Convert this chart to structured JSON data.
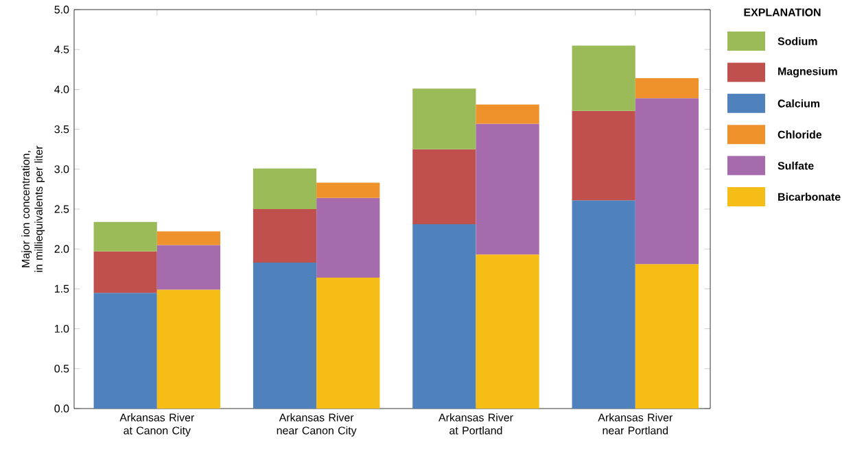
{
  "chart_data": {
    "type": "bar",
    "categories": [
      "Arkansas River at Canon City",
      "Arkansas River near Canon City",
      "Arkansas River at Portland",
      "Arkansas River near Portland"
    ],
    "ylabel": "Major ion concentration, in milliequivalents per liter",
    "legend_title": "EXPLANATION",
    "legend": "right",
    "ylim": [
      0,
      5
    ],
    "yticks": [
      {
        "value": 0,
        "label": "0.0"
      },
      {
        "value": 0.5,
        "label": "0.5"
      },
      {
        "value": 1,
        "label": "1.0"
      },
      {
        "value": 1.5,
        "label": "1.5"
      },
      {
        "value": 2,
        "label": "2.0"
      },
      {
        "value": 2.5,
        "label": "2.5"
      },
      {
        "value": 3,
        "label": "3.0"
      },
      {
        "value": 3.5,
        "label": "3.5"
      },
      {
        "value": 4,
        "label": "4.0"
      },
      {
        "value": 4.5,
        "label": "4.5"
      },
      {
        "value": 5,
        "label": "5.0"
      }
    ],
    "series": [
      {
        "name": "Calcium",
        "color": "#4f81bd",
        "base": [
          0,
          0,
          0,
          0
        ],
        "values": [
          1.45,
          1.83,
          2.31,
          2.61
        ]
      },
      {
        "name": "Magnesium",
        "color": "#c0504d",
        "base": [
          1.45,
          1.83,
          2.31,
          2.61
        ],
        "values": [
          0.52,
          0.67,
          0.94,
          1.12
        ]
      },
      {
        "name": "Sodium",
        "color": "#9bbb59",
        "base": [
          1.97,
          2.5,
          3.25,
          3.73
        ],
        "values": [
          0.37,
          0.51,
          0.76,
          0.82
        ]
      },
      {
        "name": "Bicarbonate",
        "color": "#f6bd16",
        "base": [
          0,
          0,
          0,
          0
        ],
        "values": [
          1.49,
          1.64,
          1.93,
          1.81
        ]
      },
      {
        "name": "Sulfate",
        "color": "#a66bad",
        "base": [
          1.49,
          1.64,
          1.93,
          1.81
        ],
        "values": [
          0.56,
          1.0,
          1.64,
          2.08
        ]
      },
      {
        "name": "Chloride",
        "color": "#f0922b",
        "base": [
          2.05,
          2.64,
          3.57,
          3.89
        ],
        "values": [
          0.17,
          0.19,
          0.24,
          0.25
        ]
      }
    ]
  }
}
